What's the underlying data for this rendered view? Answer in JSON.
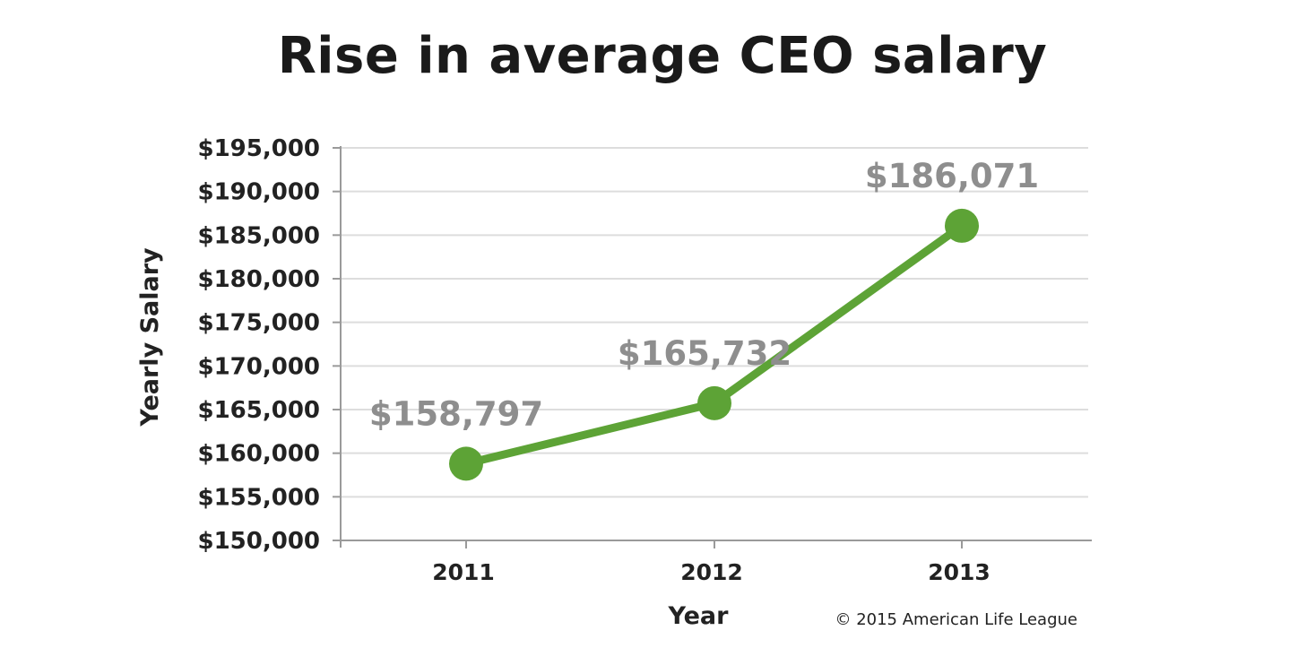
{
  "chart_data": {
    "type": "line",
    "title": "Rise in average CEO salary",
    "xlabel": "Year",
    "ylabel": "Yearly Salary",
    "categories": [
      "2011",
      "2012",
      "2013"
    ],
    "series": [
      {
        "values": [
          158797,
          165732,
          186071
        ],
        "data_labels": [
          "$158,797",
          "$165,732",
          "$186,071"
        ]
      }
    ],
    "ylim": [
      150000,
      195000
    ],
    "yticks": [
      150000,
      155000,
      160000,
      165000,
      170000,
      175000,
      180000,
      185000,
      190000,
      195000
    ],
    "ytick_labels": [
      "$150,000",
      "$155,000",
      "$160,000",
      "$165,000",
      "$170,000",
      "$175,000",
      "$180,000",
      "$185,000",
      "$190,000",
      "$195,000"
    ],
    "grid": true,
    "line_color": "#5da336",
    "grid_color": "#dddddd",
    "label_color": "#8e8e8e",
    "annotation": "© 2015 American Life League"
  }
}
